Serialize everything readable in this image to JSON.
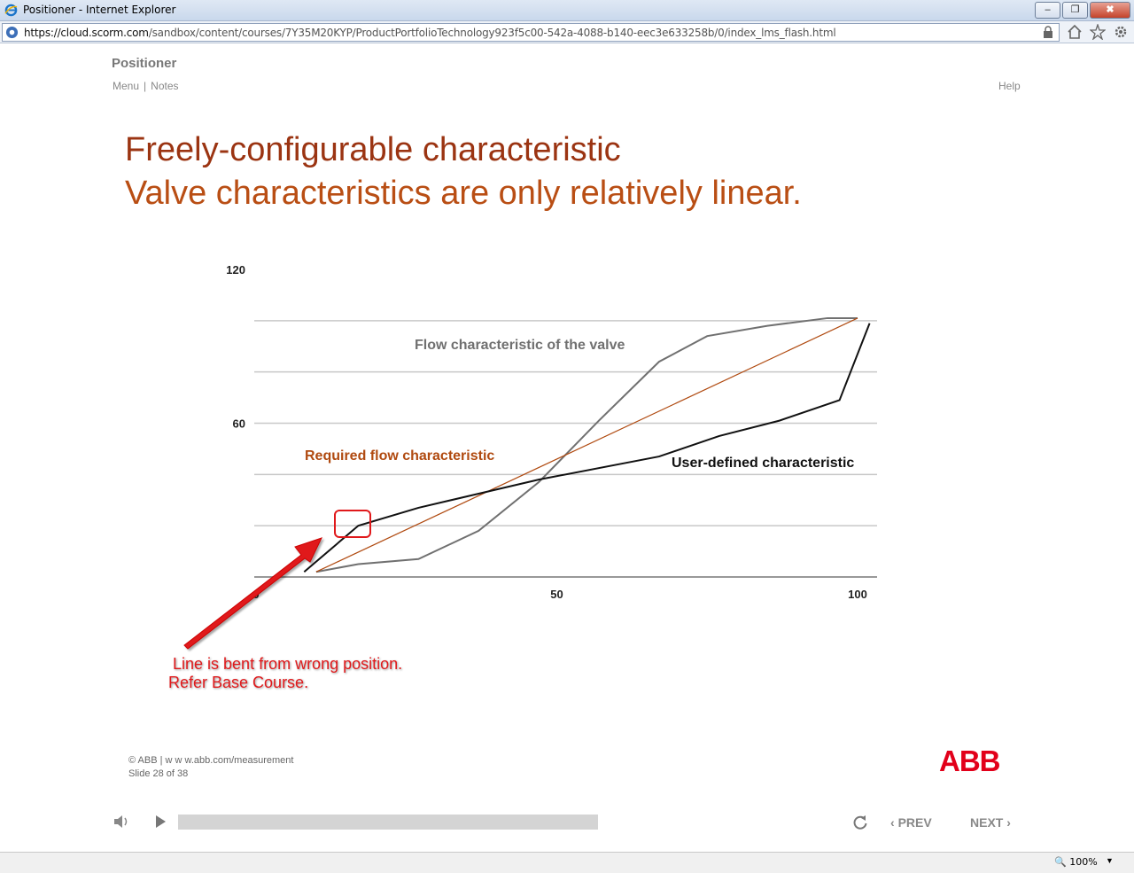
{
  "window": {
    "title": "Positioner - Internet Explorer",
    "minimize": "–",
    "restore": "❐",
    "close": "✖"
  },
  "address": {
    "host": "https://cloud.scorm.com",
    "path": "/sandbox/content/courses/7Y35M20KYP/ProductPortfolioTechnology923f5c00-542a-4088-b140-eec3e633258b/0/index_lms_flash.html"
  },
  "course": {
    "title": "Positioner",
    "menu": "Menu",
    "sep": "|",
    "notes": "Notes",
    "help": "Help"
  },
  "slide": {
    "heading1": "Freely-configurable characteristic",
    "heading2": "Valve characteristics are only relatively linear."
  },
  "chart_data": {
    "type": "line",
    "xlim": [
      0,
      100
    ],
    "ylim": [
      0,
      120
    ],
    "x_ticks": [
      "0",
      "50",
      "100"
    ],
    "y_ticks": [
      "120",
      "60"
    ],
    "grid": true,
    "series": [
      {
        "name": "Flow characteristic of the valve",
        "color": "#707070",
        "x": [
          10,
          17,
          27,
          37,
          47,
          57,
          67,
          75,
          85,
          95,
          100
        ],
        "y": [
          2,
          5,
          7,
          18,
          37,
          61,
          84,
          94,
          98,
          101,
          101
        ]
      },
      {
        "name": "Required flow characteristic",
        "color": "#b04a10",
        "x": [
          10,
          100
        ],
        "y": [
          2,
          101
        ]
      },
      {
        "name": "User-defined characteristic",
        "color": "#111111",
        "x": [
          8,
          17,
          27,
          47,
          67,
          77,
          87,
          97,
          102
        ],
        "y": [
          2,
          20,
          27,
          38,
          47,
          55,
          61,
          69,
          99
        ]
      }
    ],
    "annotations": {
      "flow": "Flow characteristic of the valve",
      "required": "Required flow characteristic",
      "user": "User-defined characteristic",
      "note_line1": "Line is bent from wrong position.",
      "note_line2": "Refer Base Course."
    },
    "colors": {
      "flow": "#707070",
      "required": "#b04a10",
      "user": "#111111",
      "callout": "#e0191b"
    }
  },
  "footer": {
    "line1": "© ABB | w w w.abb.com/measurement",
    "line2": "Slide 28 of 38",
    "logo": "ABB"
  },
  "player": {
    "prev": "PREV",
    "next": "NEXT",
    "progress": 0.0
  },
  "status": {
    "zoom": "100%"
  }
}
